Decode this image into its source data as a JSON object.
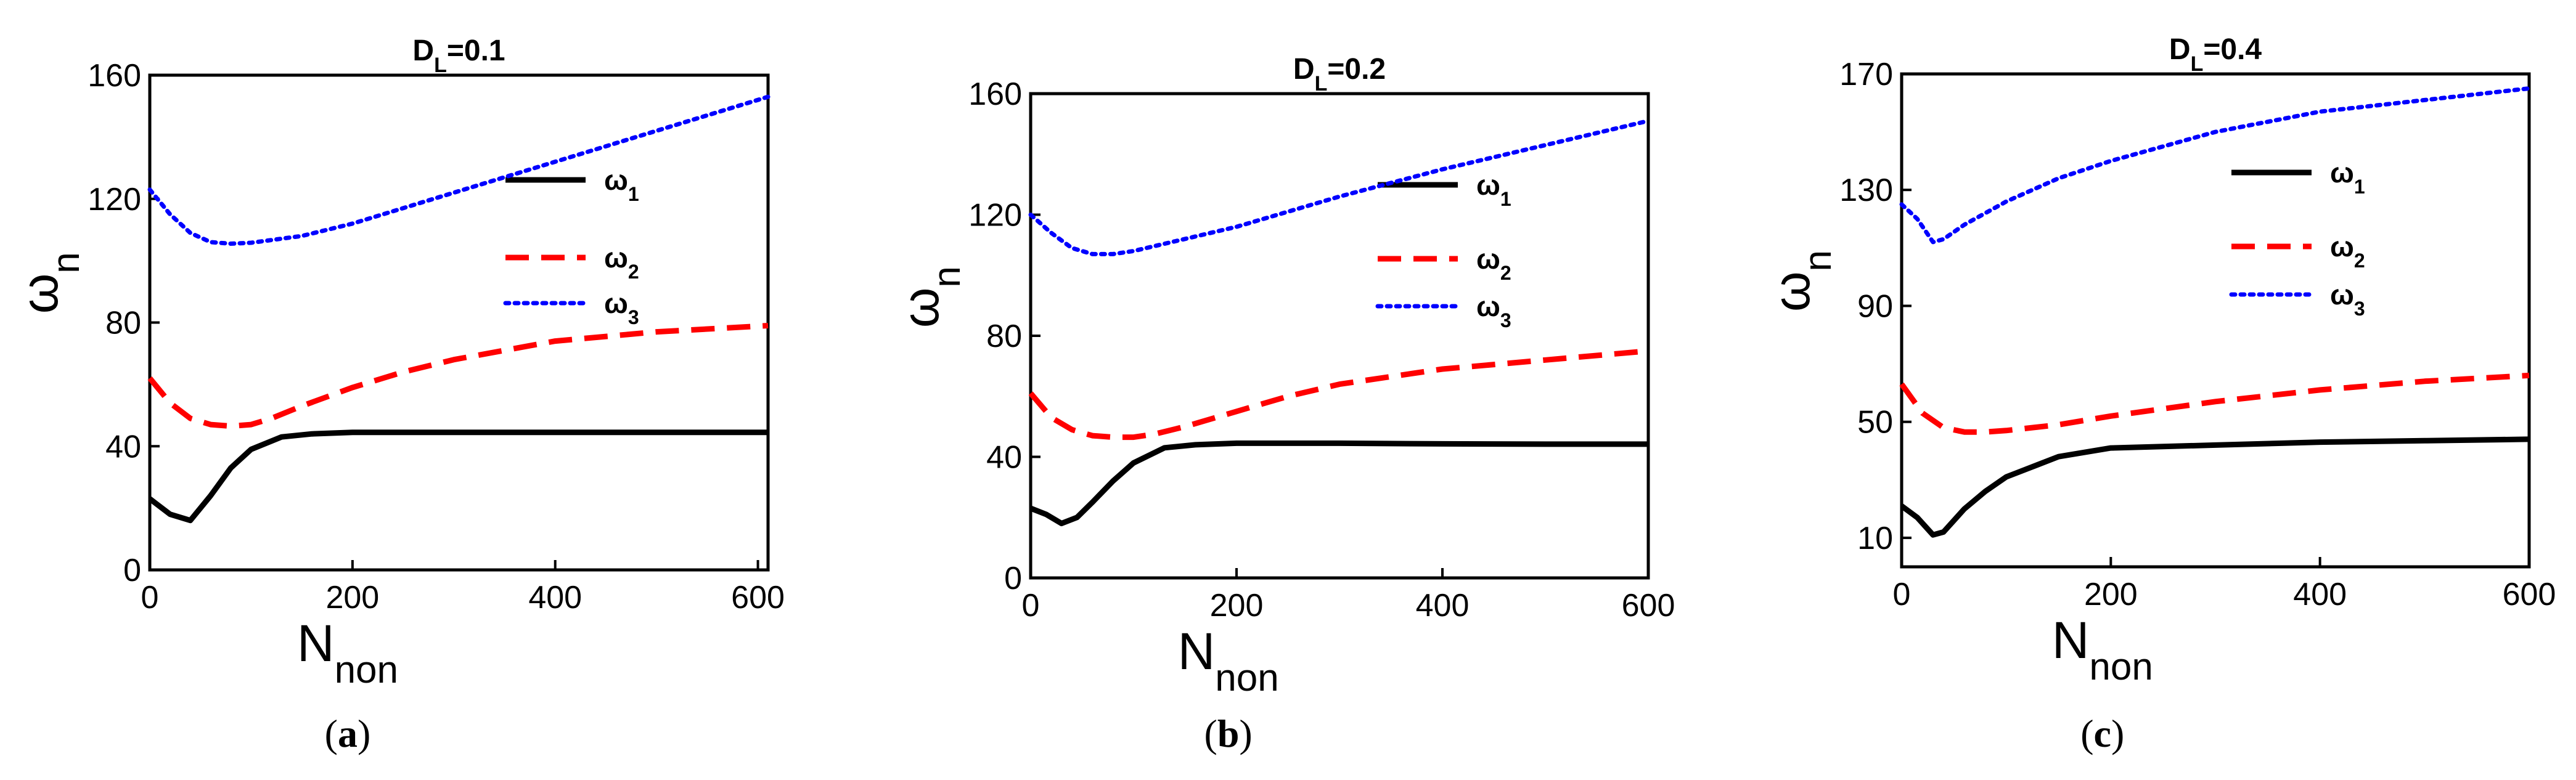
{
  "chart_data": [
    {
      "type": "line",
      "panel": "a",
      "caption_open": "(",
      "caption_letter": "a",
      "caption_close": ")",
      "title_main": "D",
      "title_sub": "L",
      "title_rest": "=0.1",
      "xlabel_main": "N",
      "xlabel_sub": "non",
      "ylabel_main": "ω",
      "ylabel_sub": "n",
      "xlim": [
        0,
        610
      ],
      "ylim": [
        0,
        160
      ],
      "xticks": [
        "0",
        "200",
        "400",
        "600"
      ],
      "xtick_values": [
        0,
        200,
        400,
        600
      ],
      "yticks": [
        "0",
        "40",
        "80",
        "120",
        "160"
      ],
      "ytick_values": [
        0,
        40,
        80,
        120,
        160
      ],
      "legend_position": "right",
      "series": [
        {
          "name_main": "ω",
          "name_sub": "1",
          "style": "solid",
          "color": "#000000",
          "x": [
            0,
            20,
            40,
            60,
            80,
            100,
            130,
            160,
            200,
            300,
            400,
            500,
            600,
            610
          ],
          "y": [
            23,
            18,
            16,
            24,
            33,
            39,
            43,
            44,
            44.5,
            44.5,
            44.5,
            44.5,
            44.5,
            44.5
          ]
        },
        {
          "name_main": "ω",
          "name_sub": "2",
          "style": "dashed",
          "color": "#ff0000",
          "x": [
            0,
            20,
            40,
            60,
            80,
            100,
            120,
            150,
            200,
            250,
            300,
            400,
            500,
            610
          ],
          "y": [
            62,
            54,
            49,
            47,
            46.5,
            47,
            49,
            53,
            59,
            64,
            68,
            74,
            77,
            79
          ]
        },
        {
          "name_main": "ω",
          "name_sub": "3",
          "style": "dotted",
          "color": "#0000ff",
          "x": [
            0,
            20,
            40,
            60,
            80,
            100,
            150,
            200,
            300,
            400,
            500,
            610
          ],
          "y": [
            123,
            115,
            109,
            106,
            105.5,
            105.8,
            108,
            112,
            122,
            132,
            142,
            153
          ]
        }
      ]
    },
    {
      "type": "line",
      "panel": "b",
      "caption_open": "(",
      "caption_letter": "b",
      "caption_close": ")",
      "title_main": "D",
      "title_sub": "L",
      "title_rest": "=0.2",
      "xlabel_main": "N",
      "xlabel_sub": "non",
      "ylabel_main": "ω",
      "ylabel_sub": "n",
      "xlim": [
        0,
        600
      ],
      "ylim": [
        0,
        160
      ],
      "xticks": [
        "0",
        "200",
        "400",
        "600"
      ],
      "xtick_values": [
        0,
        200,
        400,
        600
      ],
      "yticks": [
        "0",
        "40",
        "80",
        "120",
        "160"
      ],
      "ytick_values": [
        0,
        40,
        80,
        120,
        160
      ],
      "legend_position": "right",
      "series": [
        {
          "name_main": "ω",
          "name_sub": "1",
          "style": "solid",
          "color": "#000000",
          "x": [
            0,
            15,
            30,
            45,
            60,
            80,
            100,
            130,
            160,
            200,
            300,
            400,
            500,
            600
          ],
          "y": [
            23,
            21,
            18,
            20,
            25,
            32,
            38,
            43,
            44,
            44.5,
            44.5,
            44.3,
            44.2,
            44.2
          ]
        },
        {
          "name_main": "ω",
          "name_sub": "2",
          "style": "dashed",
          "color": "#ff0000",
          "x": [
            0,
            20,
            40,
            60,
            80,
            100,
            120,
            150,
            200,
            250,
            300,
            400,
            500,
            600
          ],
          "y": [
            61,
            53,
            49,
            47,
            46.5,
            46.5,
            47.5,
            50,
            55,
            60,
            64,
            69,
            72,
            75
          ]
        },
        {
          "name_main": "ω",
          "name_sub": "3",
          "style": "dotted",
          "color": "#0000ff",
          "x": [
            0,
            20,
            40,
            60,
            80,
            100,
            150,
            200,
            300,
            400,
            500,
            600
          ],
          "y": [
            120,
            114,
            109,
            107,
            107,
            108,
            112,
            116,
            126,
            135,
            143,
            151
          ]
        }
      ]
    },
    {
      "type": "line",
      "panel": "c",
      "caption_open": "(",
      "caption_letter": "c",
      "caption_close": ")",
      "title_main": "D",
      "title_sub": "L",
      "title_rest": "=0.4",
      "xlabel_main": "N",
      "xlabel_sub": "non",
      "ylabel_main": "ω",
      "ylabel_sub": "n",
      "xlim": [
        0,
        600
      ],
      "ylim": [
        0,
        170
      ],
      "xticks": [
        "0",
        "200",
        "400",
        "600"
      ],
      "xtick_values": [
        0,
        200,
        400,
        600
      ],
      "yticks": [
        "10",
        "50",
        "90",
        "130",
        "170"
      ],
      "ytick_values": [
        10,
        50,
        90,
        130,
        170
      ],
      "legend_position": "right",
      "series": [
        {
          "name_main": "ω",
          "name_sub": "1",
          "style": "solid",
          "color": "#000000",
          "x": [
            0,
            15,
            30,
            40,
            60,
            80,
            100,
            150,
            200,
            300,
            400,
            500,
            600
          ],
          "y": [
            21,
            17,
            11,
            12,
            20,
            26,
            31,
            38,
            41,
            42,
            43,
            43.5,
            44
          ]
        },
        {
          "name_main": "ω",
          "name_sub": "2",
          "style": "dashed",
          "color": "#ff0000",
          "x": [
            0,
            20,
            40,
            60,
            80,
            100,
            150,
            200,
            300,
            400,
            500,
            600
          ],
          "y": [
            63,
            53,
            48,
            46.5,
            46.5,
            47,
            49,
            52,
            57,
            61,
            64,
            66
          ]
        },
        {
          "name_main": "ω",
          "name_sub": "3",
          "style": "dotted",
          "color": "#0000ff",
          "x": [
            0,
            15,
            30,
            40,
            60,
            100,
            150,
            200,
            300,
            400,
            500,
            600
          ],
          "y": [
            125,
            120,
            112,
            113,
            118,
            126,
            134,
            140,
            150,
            157,
            161,
            165
          ]
        }
      ]
    }
  ]
}
